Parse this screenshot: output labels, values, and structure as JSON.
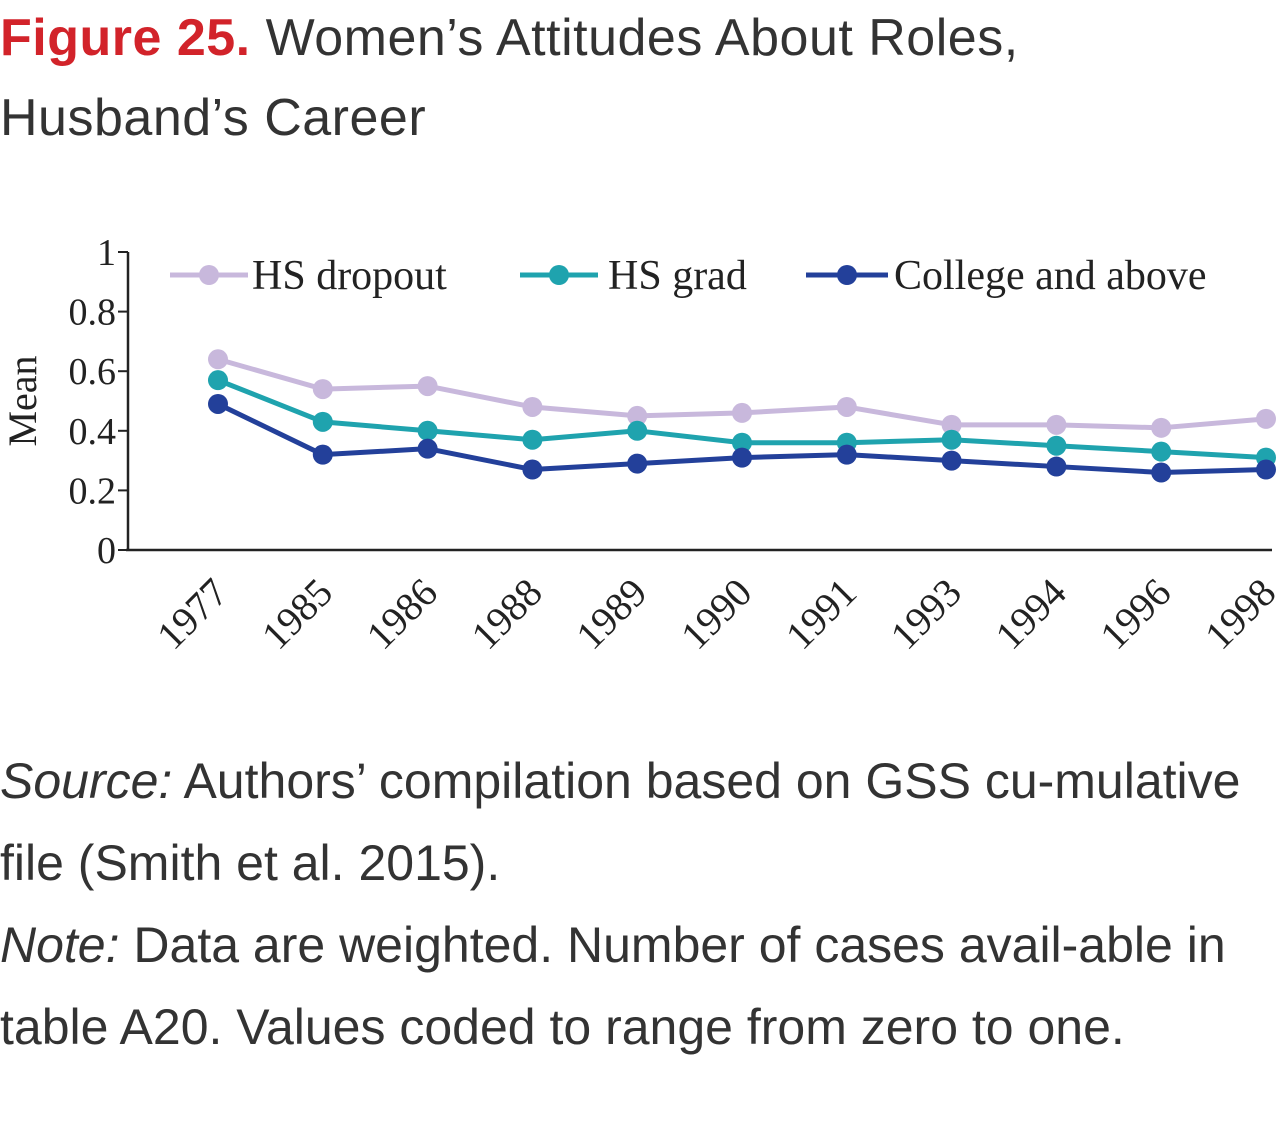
{
  "figure": {
    "label": "Figure 25.",
    "title": "Women’s Attitudes About Roles, Husband’s Career"
  },
  "chart_data": {
    "type": "line",
    "title": "",
    "xlabel": "",
    "ylabel": "Mean",
    "ylim": [
      0,
      1
    ],
    "yticks": [
      "0",
      "0.2",
      "0.4",
      "0.6",
      "0.8",
      "1"
    ],
    "grid": false,
    "legend": "top",
    "categories": [
      "1977",
      "1985",
      "1986",
      "1988",
      "1989",
      "1990",
      "1991",
      "1993",
      "1994",
      "1996",
      "1998"
    ],
    "series": [
      {
        "name": "HS dropout",
        "color": "#c8b8dc",
        "values": [
          0.64,
          0.54,
          0.55,
          0.48,
          0.45,
          0.46,
          0.48,
          0.42,
          0.42,
          0.41,
          0.44
        ]
      },
      {
        "name": "HS grad",
        "color": "#1fa3ae",
        "values": [
          0.57,
          0.43,
          0.4,
          0.37,
          0.4,
          0.36,
          0.36,
          0.37,
          0.35,
          0.33,
          0.31
        ]
      },
      {
        "name": "College and above",
        "color": "#23409a",
        "values": [
          0.49,
          0.32,
          0.34,
          0.27,
          0.29,
          0.31,
          0.32,
          0.3,
          0.28,
          0.26,
          0.27
        ]
      }
    ]
  },
  "notes": {
    "source_label": "Source:",
    "source_text": " Authors’ compilation based on GSS cu-mulative file (Smith et al. 2015).",
    "note_label": "Note:",
    "note_text": " Data are weighted. Number of cases avail-able in table A20. Values coded to range from zero to one."
  }
}
